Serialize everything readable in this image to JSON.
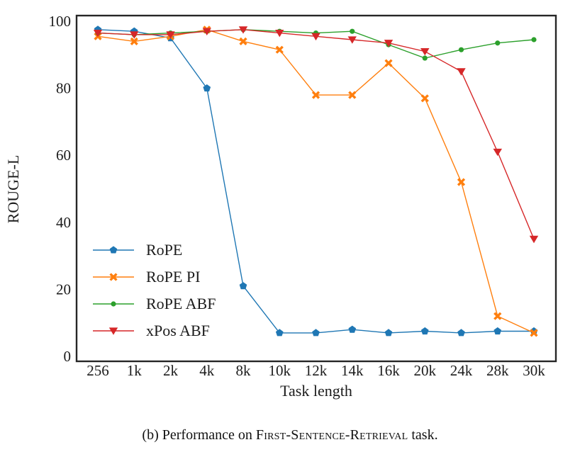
{
  "figure": {
    "caption": {
      "prefix": "(b) Performance on ",
      "task_name": "First-Sentence-Retrieval",
      "suffix": " task."
    }
  },
  "chart_data": {
    "type": "line",
    "title": "",
    "xlabel": "Task length",
    "ylabel": "ROUGE-L",
    "categories": [
      "256",
      "1k",
      "2k",
      "4k",
      "8k",
      "10k",
      "12k",
      "14k",
      "16k",
      "20k",
      "24k",
      "28k",
      "30k"
    ],
    "y_ticks": [
      0,
      20,
      40,
      60,
      80,
      100
    ],
    "ylim": [
      0,
      100
    ],
    "grid": false,
    "legend_position": "lower-left-inside",
    "axis_color": "#262626",
    "series": [
      {
        "name": "RoPE",
        "color": "#1f77b4",
        "marker": "pentagon",
        "values": [
          97.5,
          97,
          95,
          80,
          21,
          7,
          7,
          8,
          7,
          7.5,
          7,
          7.5,
          7.5
        ]
      },
      {
        "name": "RoPE PI",
        "color": "#ff7f0e",
        "marker": "x",
        "values": [
          95.5,
          94,
          95.5,
          97.5,
          94,
          91.5,
          78,
          78,
          87.5,
          77,
          52,
          12,
          7
        ]
      },
      {
        "name": "RoPE ABF",
        "color": "#2ca02c",
        "marker": "circle",
        "values": [
          96.5,
          96,
          96.5,
          97,
          97.5,
          97,
          96.5,
          97,
          93,
          89,
          91.5,
          93.5,
          94.5
        ]
      },
      {
        "name": "xPos ABF",
        "color": "#d62728",
        "marker": "triangle-down",
        "values": [
          96.5,
          96,
          96,
          97,
          97.5,
          96.5,
          95.5,
          94.5,
          93.5,
          91,
          85,
          61,
          35
        ]
      }
    ]
  }
}
